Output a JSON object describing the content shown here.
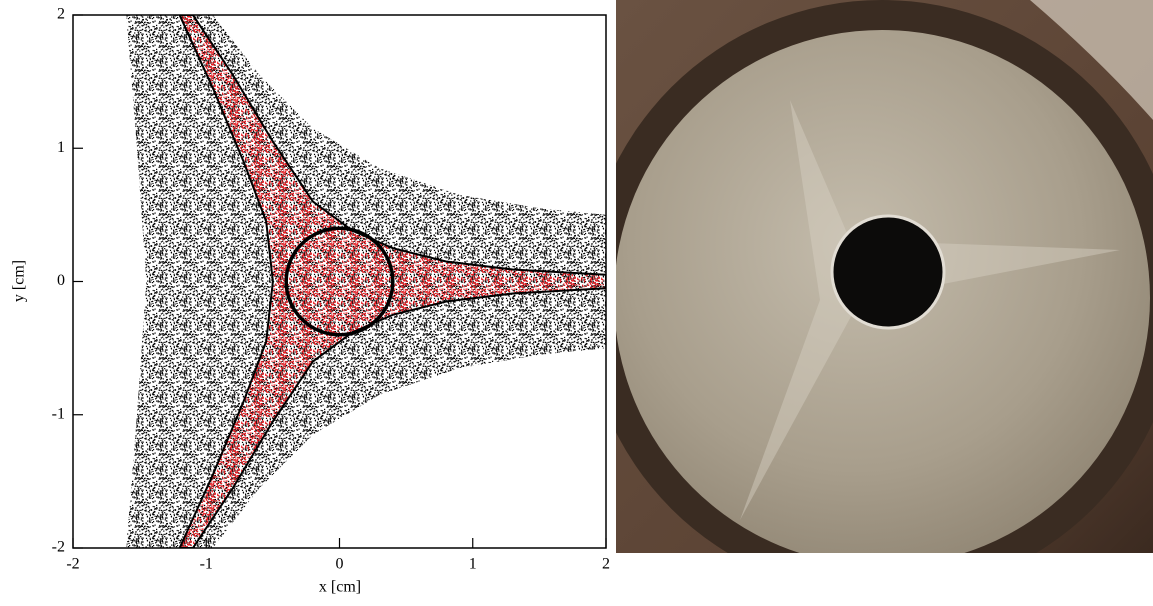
{
  "chart_data": {
    "type": "scatter",
    "x_label": "x [cm]",
    "y_label": "y [cm]",
    "xlim": [
      -2,
      2
    ],
    "ylim": [
      -2,
      2
    ],
    "xticks": [
      -2,
      -1,
      0,
      1,
      2
    ],
    "yticks": [
      -2,
      -1,
      0,
      1,
      2
    ],
    "regions": [
      {
        "color": "#000000",
        "x": [
          -1.6,
          -0.95,
          -0.6,
          -0.2,
          0.3,
          0.9,
          1.5,
          2,
          2,
          1.5,
          0.9,
          0.3,
          -0.2,
          -0.6,
          -0.95,
          -1.6,
          -1.52,
          -1.45,
          -1.52
        ],
        "y": [
          2,
          2,
          1.55,
          1.15,
          0.85,
          0.65,
          0.55,
          0.5,
          -0.5,
          -0.55,
          -0.65,
          -0.85,
          -1.15,
          -1.55,
          -2,
          -2,
          -1,
          0,
          1
        ]
      },
      {
        "color": "#e8141a",
        "x": [
          -1.1,
          -0.8,
          -0.5,
          -0.2,
          0.1,
          0.4,
          0.8,
          1.3,
          2,
          2,
          1.3,
          0.8,
          0.4,
          0.1,
          -0.2,
          -0.5,
          -0.8,
          -1.1,
          -1.2,
          -0.95,
          -0.72,
          -0.55,
          -0.5,
          -0.55,
          -0.72,
          -0.95,
          -1.2
        ],
        "y": [
          2,
          1.55,
          1.05,
          0.6,
          0.38,
          0.25,
          0.15,
          0.09,
          0.05,
          -0.05,
          -0.09,
          -0.15,
          -0.25,
          -0.38,
          -0.6,
          -1.05,
          -1.55,
          -2,
          -2,
          -1.45,
          -0.9,
          -0.45,
          0,
          0.45,
          0.9,
          1.45,
          2
        ]
      }
    ],
    "circle": {
      "x": 0,
      "y": 0,
      "radius": 0.4
    }
  }
}
